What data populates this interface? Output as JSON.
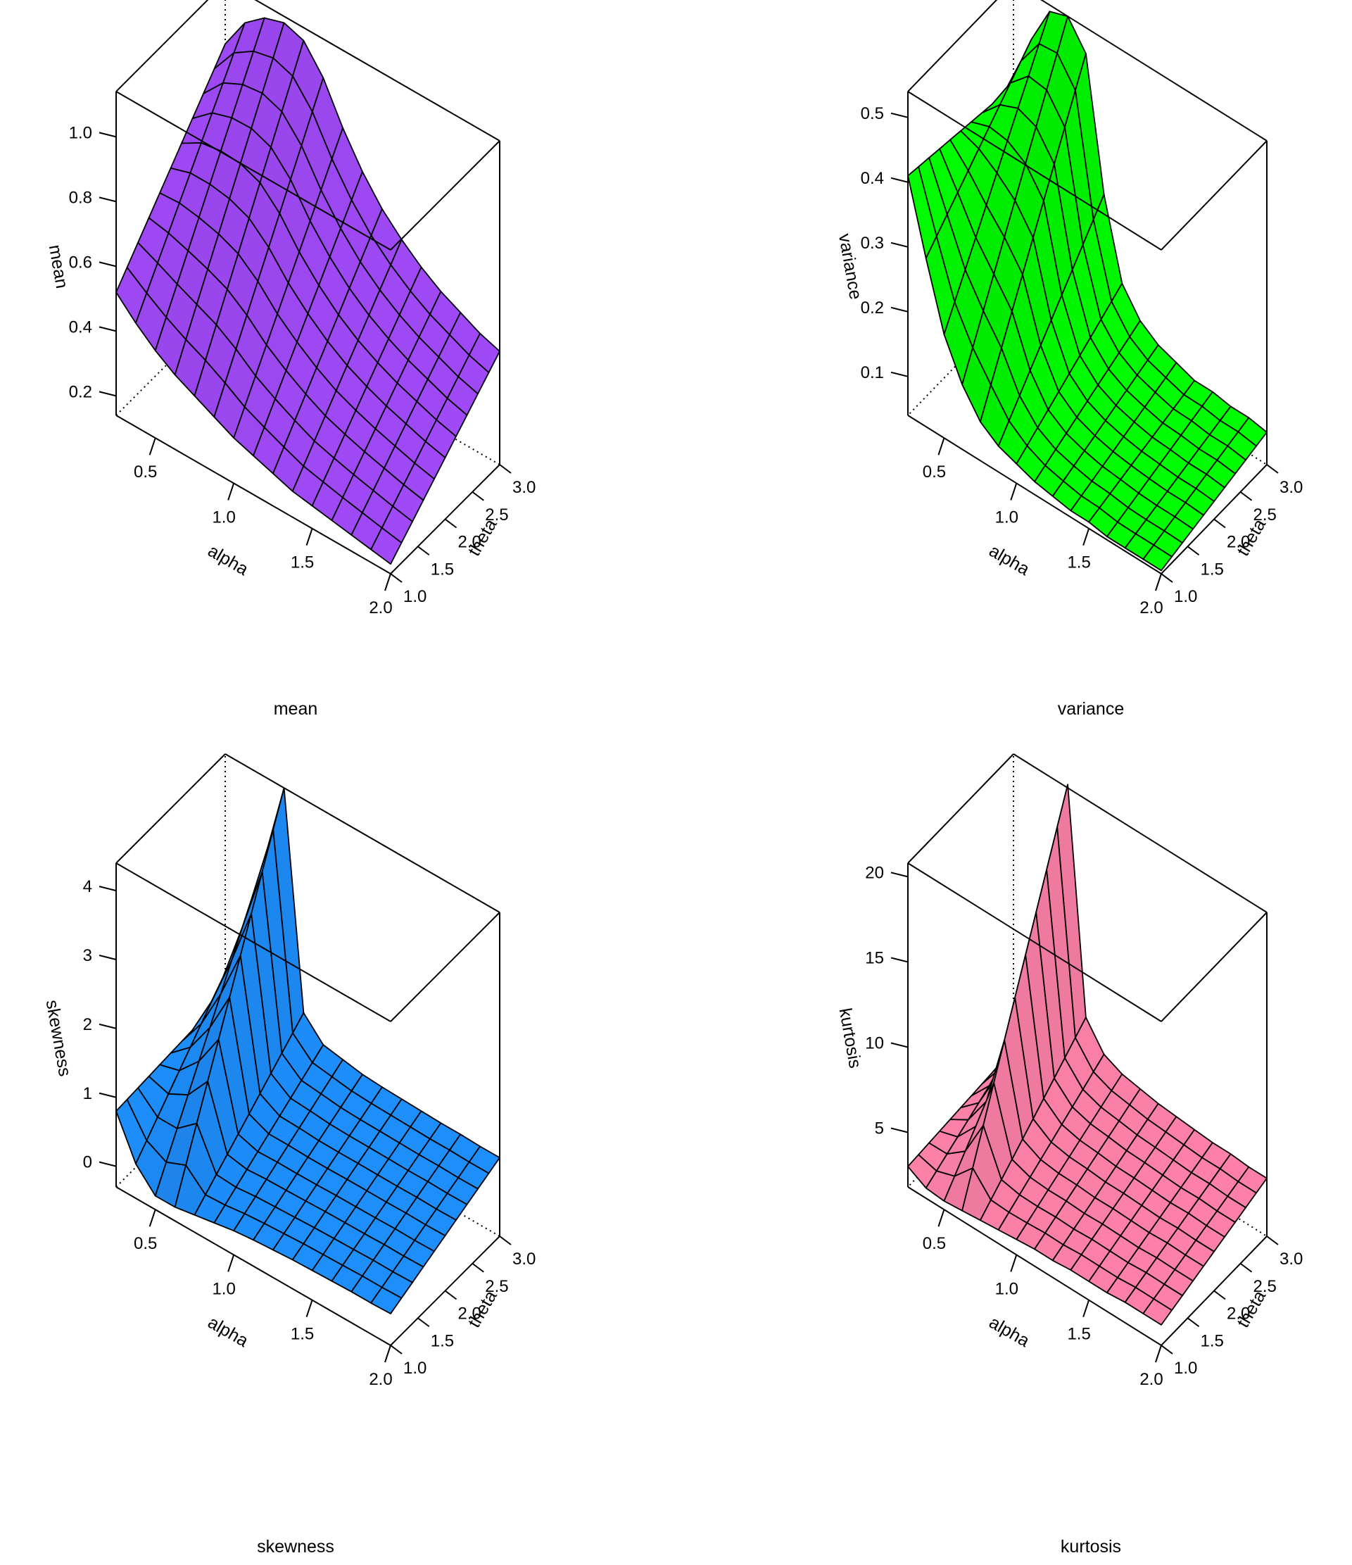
{
  "chart_data": [
    {
      "type": "surface3d",
      "caption": "mean",
      "zlabel": "mean",
      "xlabel": "alpha",
      "ylabel": "theta",
      "xticks": [
        "0.5",
        "1.0",
        "1.5",
        "2.0"
      ],
      "yticks": [
        "1.0",
        "1.5",
        "2.0",
        "2.5",
        "3.0"
      ],
      "zticks": [
        "0.2",
        "0.4",
        "0.6",
        "0.8",
        "1.0"
      ],
      "xlim": [
        0.25,
        2.0
      ],
      "ylim": [
        1.0,
        3.0
      ],
      "zlim": [
        0.14,
        1.14
      ],
      "color": "#a54cff",
      "alpha": [
        0.25,
        0.375,
        0.5,
        0.625,
        0.75,
        0.875,
        1.0,
        1.125,
        1.25,
        1.375,
        1.5,
        1.625,
        1.75,
        1.875,
        2.0
      ],
      "theta": [
        1.0,
        1.2,
        1.4,
        1.6,
        1.8,
        2.0,
        2.2,
        2.4,
        2.6,
        2.8,
        3.0
      ],
      "z_at_theta_min": [
        0.52,
        0.46,
        0.41,
        0.37,
        0.34,
        0.31,
        0.28,
        0.26,
        0.24,
        0.22,
        0.21,
        0.2,
        0.19,
        0.18,
        0.17
      ],
      "z_at_theta_max": [
        0.95,
        1.05,
        1.1,
        1.12,
        1.1,
        1.02,
        0.9,
        0.8,
        0.72,
        0.66,
        0.61,
        0.57,
        0.54,
        0.51,
        0.49
      ],
      "grid": false
    },
    {
      "type": "surface3d",
      "caption": "variance",
      "zlabel": "variance",
      "xlabel": "alpha",
      "ylabel": "theta",
      "xticks": [
        "0.5",
        "1.0",
        "1.5",
        "2.0"
      ],
      "yticks": [
        "1.0",
        "1.5",
        "2.0",
        "2.5",
        "3.0"
      ],
      "zticks": [
        "0.1",
        "0.2",
        "0.3",
        "0.4",
        "0.5"
      ],
      "xlim": [
        0.25,
        2.0
      ],
      "ylim": [
        1.0,
        3.0
      ],
      "zlim": [
        0.04,
        0.54
      ],
      "color": "#00ff00",
      "alpha": [
        0.25,
        0.375,
        0.5,
        0.625,
        0.75,
        0.875,
        1.0,
        1.125,
        1.25,
        1.375,
        1.5,
        1.625,
        1.75,
        1.875,
        2.0
      ],
      "theta": [
        1.0,
        1.2,
        1.4,
        1.6,
        1.8,
        2.0,
        2.2,
        2.4,
        2.6,
        2.8,
        3.0
      ],
      "z_at_theta_min": [
        0.41,
        0.3,
        0.2,
        0.14,
        0.1,
        0.08,
        0.07,
        0.06,
        0.055,
        0.05,
        0.05,
        0.045,
        0.045,
        0.045,
        0.045
      ],
      "z_at_theta_max": [
        0.38,
        0.47,
        0.53,
        0.54,
        0.5,
        0.3,
        0.18,
        0.14,
        0.12,
        0.11,
        0.1,
        0.1,
        0.095,
        0.095,
        0.09
      ],
      "grid": false
    },
    {
      "type": "surface3d",
      "caption": "skewness",
      "zlabel": "skewness",
      "xlabel": "alpha",
      "ylabel": "theta",
      "xticks": [
        "0.5",
        "1.0",
        "1.5",
        "2.0"
      ],
      "yticks": [
        "1.0",
        "1.5",
        "2.0",
        "2.5",
        "3.0"
      ],
      "zticks": [
        "0",
        "1",
        "2",
        "3",
        "4"
      ],
      "xlim": [
        0.25,
        2.0
      ],
      "ylim": [
        1.0,
        3.0
      ],
      "zlim": [
        -0.3,
        4.4
      ],
      "color": "#1e90ff",
      "alpha": [
        0.25,
        0.375,
        0.5,
        0.625,
        0.75,
        0.875,
        1.0,
        1.125,
        1.25,
        1.375,
        1.5,
        1.625,
        1.75,
        1.875,
        2.0
      ],
      "theta": [
        1.0,
        1.2,
        1.4,
        1.6,
        1.8,
        2.0,
        2.2,
        2.4,
        2.6,
        2.8,
        3.0
      ],
      "z_at_theta_min": [
        0.8,
        0.2,
        -0.1,
        -0.1,
        -0.05,
        0.0,
        0.05,
        0.08,
        0.1,
        0.12,
        0.13,
        0.14,
        0.15,
        0.15,
        0.16
      ],
      "z_at_theta_max": [
        0.9,
        2.0,
        3.2,
        4.4,
        1.3,
        1.0,
        0.95,
        0.9,
        0.88,
        0.87,
        0.86,
        0.85,
        0.85,
        0.84,
        0.84
      ],
      "grid": false
    },
    {
      "type": "surface3d",
      "caption": "kurtosis",
      "zlabel": "kurtosis",
      "xlabel": "alpha",
      "ylabel": "theta",
      "xticks": [
        "0.5",
        "1.0",
        "1.5",
        "2.0"
      ],
      "yticks": [
        "1.0",
        "1.5",
        "2.0",
        "2.5",
        "3.0"
      ],
      "zticks": [
        "5",
        "10",
        "15",
        "20"
      ],
      "xlim": [
        0.25,
        2.0
      ],
      "ylim": [
        1.0,
        3.0
      ],
      "zlim": [
        1.8,
        20.8
      ],
      "color": "#ff82ab",
      "alpha": [
        0.25,
        0.375,
        0.5,
        0.625,
        0.75,
        0.875,
        1.0,
        1.125,
        1.25,
        1.375,
        1.5,
        1.625,
        1.75,
        1.875,
        2.0
      ],
      "theta": [
        1.0,
        1.2,
        1.4,
        1.6,
        1.8,
        2.0,
        2.2,
        2.4,
        2.6,
        2.8,
        3.0
      ],
      "z_at_theta_min": [
        3.0,
        2.4,
        2.3,
        2.4,
        2.5,
        2.6,
        2.7,
        2.8,
        2.8,
        2.9,
        2.9,
        2.9,
        3.0,
        3.0,
        3.0
      ],
      "z_at_theta_max": [
        3.5,
        6.0,
        10.5,
        21.0,
        8.0,
        6.5,
        6.0,
        5.8,
        5.6,
        5.5,
        5.4,
        5.3,
        5.3,
        5.2,
        5.2
      ],
      "grid": false
    }
  ]
}
